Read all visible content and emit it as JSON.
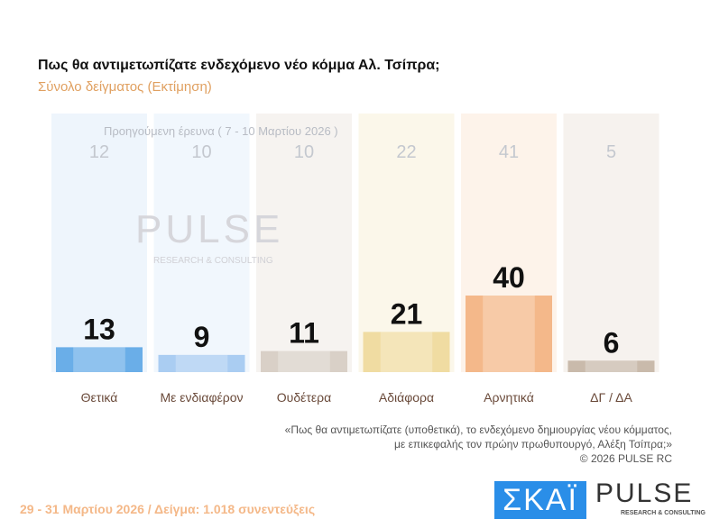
{
  "chart_data": {
    "type": "bar",
    "title": "Πως θα αντιμετωπίζατε ενδεχόμενο νέο κόμμα Αλ. Τσίπρα;",
    "subtitle": "Σύνολο δείγματος  (Εκτίμηση)",
    "categories": [
      "Θετικά",
      "Με ενδιαφέρον",
      "Ουδέτερα",
      "Αδιάφορα",
      "Αρνητικά",
      "ΔΓ / ΔΑ"
    ],
    "series": [
      {
        "name": "Προηγούμενη έρευνα ( 7 - 10 Μαρτίου 2026 )",
        "values": [
          12,
          10,
          10,
          22,
          41,
          5
        ]
      },
      {
        "values": [
          13,
          9,
          11,
          21,
          40,
          6
        ]
      }
    ],
    "colors": [
      "#6aaee8",
      "#aacdf2",
      "#d9d0c7",
      "#f0dca2",
      "#f4b88a",
      "#c9baab"
    ],
    "bg_colors": [
      "#eef5fc",
      "#f1f7fd",
      "#f6f3f0",
      "#fbf7ea",
      "#fdf3ea",
      "#f6f2ee"
    ],
    "ylim": [
      0,
      40
    ]
  },
  "note": {
    "line1": "«Πως θα αντιμετωπίζατε (υποθετικά), το ενδεχόμενο δημιουργίας νέου κόμματος,",
    "line2": "με επικεφαλής τον πρώην πρωθυπουργό, Αλέξη Τσίπρα;»",
    "copyright": "©  2026  PULSE RC"
  },
  "footer": "29 - 31  Μαρτίου 2026  /  Δείγμα:  1.018 συνεντεύξεις",
  "logos": {
    "skai": "ΣΚΑΪ",
    "pulse": "PULSE",
    "pulse_sub": "RESEARCH & CONSULTING",
    "watermark": "PULSE",
    "watermark_sub": "RESEARCH & CONSULTING"
  }
}
